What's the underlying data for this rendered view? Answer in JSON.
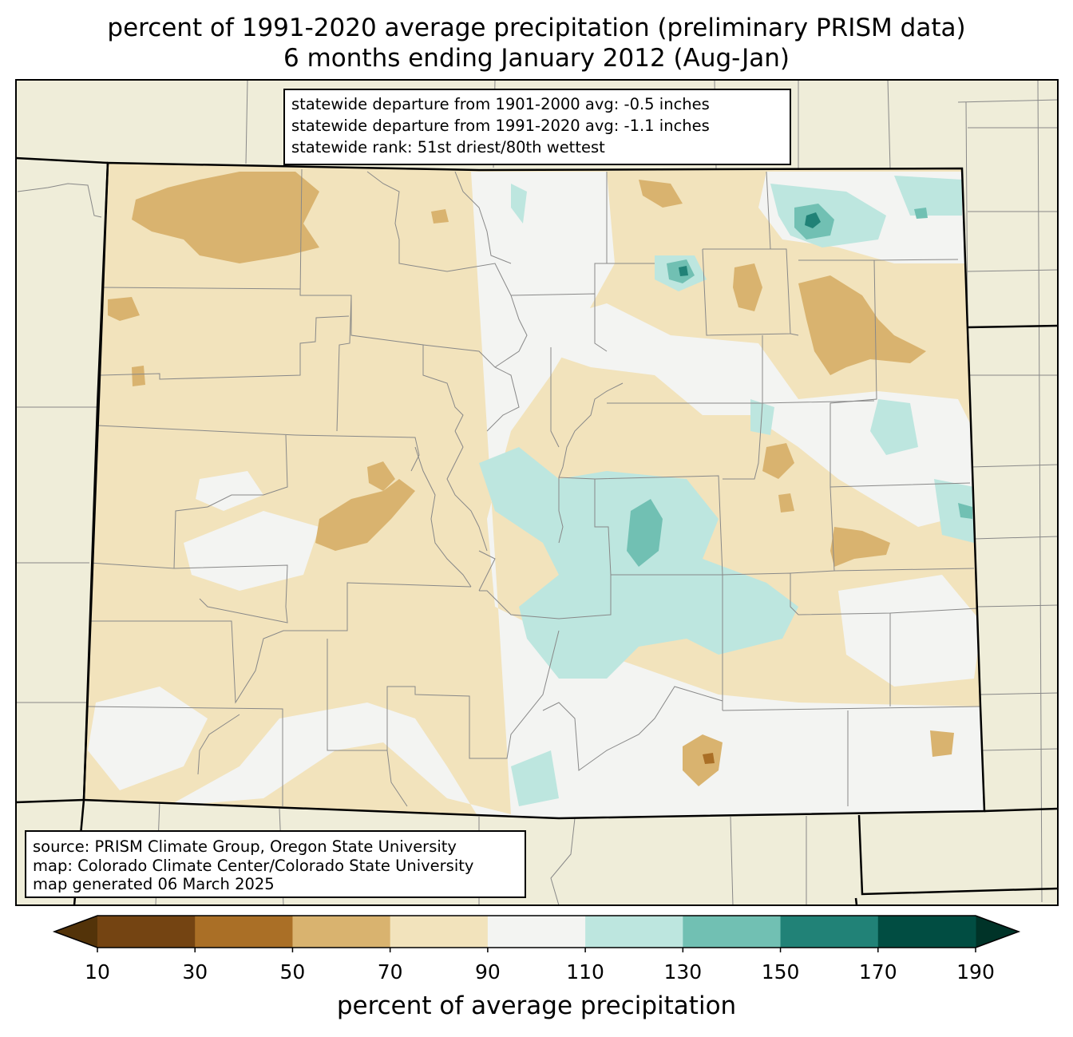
{
  "title": {
    "line1": "percent of 1991-2020 average precipitation (preliminary PRISM data)",
    "line2": "6 months ending January 2012 (Aug-Jan)"
  },
  "stats_box": {
    "line1": "statewide departure from 1901-2000 avg: -0.5 inches",
    "line2": "statewide departure from 1991-2020 avg: -1.1 inches",
    "line3": "statewide rank: 51st driest/80th wettest"
  },
  "source_box": {
    "line1": "source: PRISM Climate Group, Oregon State University",
    "line2": "map: Colorado Climate Center/Colorado State University",
    "line3": "map generated 06 March 2025"
  },
  "colorbar": {
    "label": "percent of average precipitation",
    "ticks": [
      "10",
      "30",
      "50",
      "70",
      "90",
      "110",
      "130",
      "150",
      "170",
      "190"
    ],
    "colors": [
      "#744412",
      "#aa6f26",
      "#d9b36f",
      "#f2e3bc",
      "#f3f4f2",
      "#bde6df",
      "#71c0b3",
      "#218277",
      "#014d42"
    ],
    "under_color": "#533309",
    "over_color": "#003328"
  },
  "colors": {
    "land_outside": "#efedd9",
    "state_boundary": "#000000",
    "county_lines": "#888888"
  }
}
